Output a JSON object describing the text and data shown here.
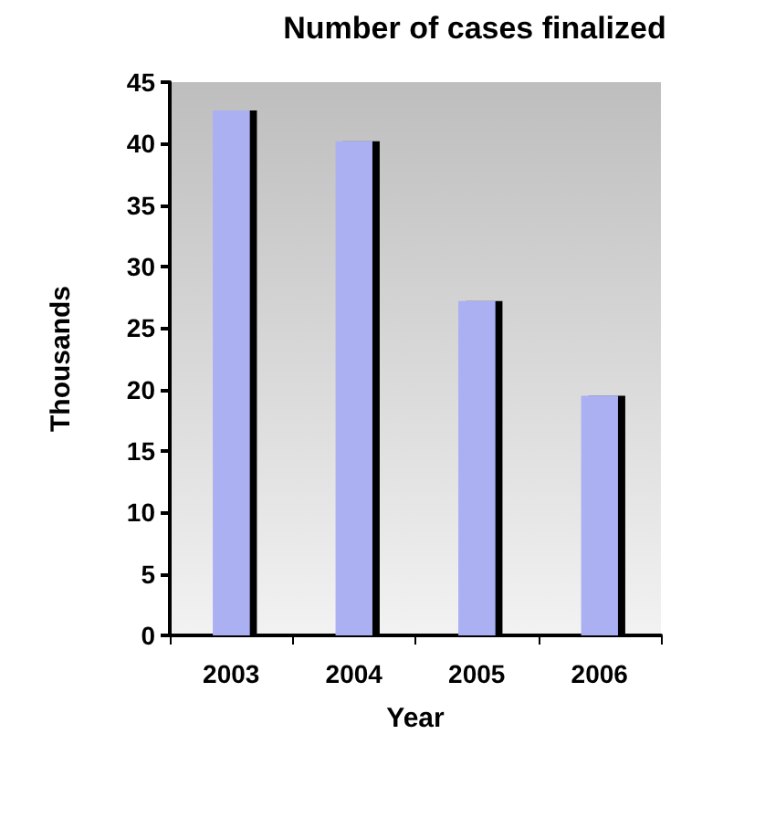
{
  "chart_data": {
    "type": "bar",
    "title": "Number of cases finalized",
    "xlabel": "Year",
    "ylabel": "Thousands",
    "categories": [
      "2003",
      "2004",
      "2005",
      "2006"
    ],
    "values": [
      42.7,
      40.2,
      27.2,
      19.5
    ],
    "colors": [
      "#aab0f2",
      "#aab0f2",
      "#aab0f2",
      "#aab0f2"
    ],
    "ylim": [
      0,
      45
    ],
    "yticks": [
      0,
      5,
      10,
      15,
      20,
      25,
      30,
      35,
      40,
      45
    ],
    "grid": false
  }
}
